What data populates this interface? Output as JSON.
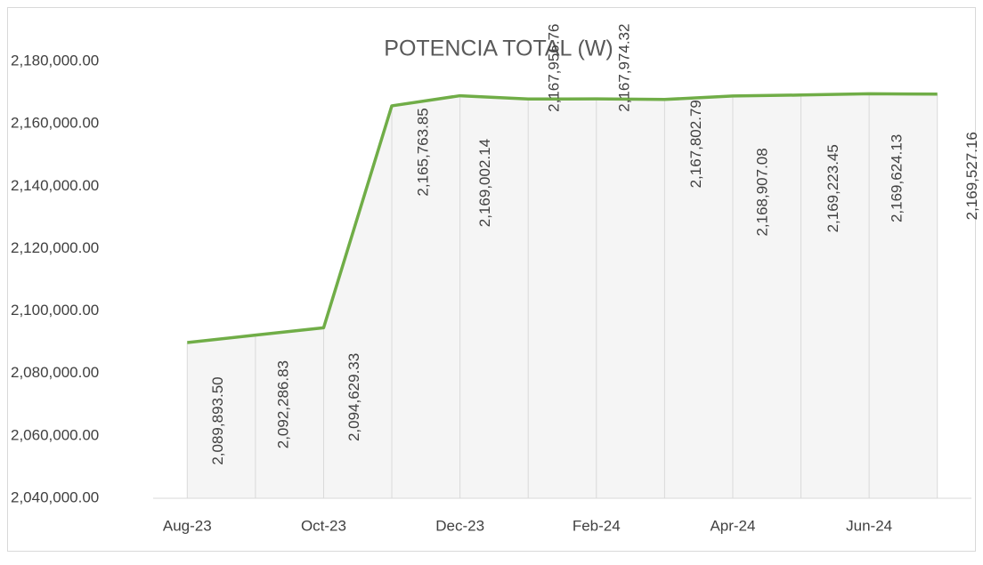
{
  "chart_data": {
    "type": "line",
    "title": "POTENCIA TOTAL (W)",
    "categories": [
      "Aug-23",
      null,
      "Oct-23",
      null,
      "Dec-23",
      null,
      "Feb-24",
      null,
      "Apr-24",
      null,
      "Jun-24",
      null
    ],
    "series": [
      {
        "name": "POTENCIA TOTAL (W)",
        "color": "#70ad47",
        "values": [
          2089893.5,
          2092286.83,
          2094629.33,
          2165763.85,
          2169002.14,
          2167956.76,
          2167974.32,
          2167802.79,
          2168907.08,
          2169223.45,
          2169624.13,
          2169527.16
        ],
        "value_labels": [
          "2,089,893.50",
          "2,092,286.83",
          "2,094,629.33",
          "2,165,763.85",
          "2,169,002.14",
          "2,167,956.76",
          "2,167,974.32",
          "2,167,802.79",
          "2,168,907.08",
          "2,169,223.45",
          "2,169,624.13",
          "2,169,527.16"
        ]
      }
    ],
    "ylim": [
      2040000,
      2180000
    ],
    "yticks": [
      {
        "value": 2040000,
        "label": "2,040,000.00"
      },
      {
        "value": 2060000,
        "label": "2,060,000.00"
      },
      {
        "value": 2080000,
        "label": "2,080,000.00"
      },
      {
        "value": 2100000,
        "label": "2,100,000.00"
      },
      {
        "value": 2120000,
        "label": "2,120,000.00"
      },
      {
        "value": 2140000,
        "label": "2,140,000.00"
      },
      {
        "value": 2160000,
        "label": "2,160,000.00"
      },
      {
        "value": 2180000,
        "label": "2,180,000.00"
      }
    ],
    "drop_lines": true
  }
}
